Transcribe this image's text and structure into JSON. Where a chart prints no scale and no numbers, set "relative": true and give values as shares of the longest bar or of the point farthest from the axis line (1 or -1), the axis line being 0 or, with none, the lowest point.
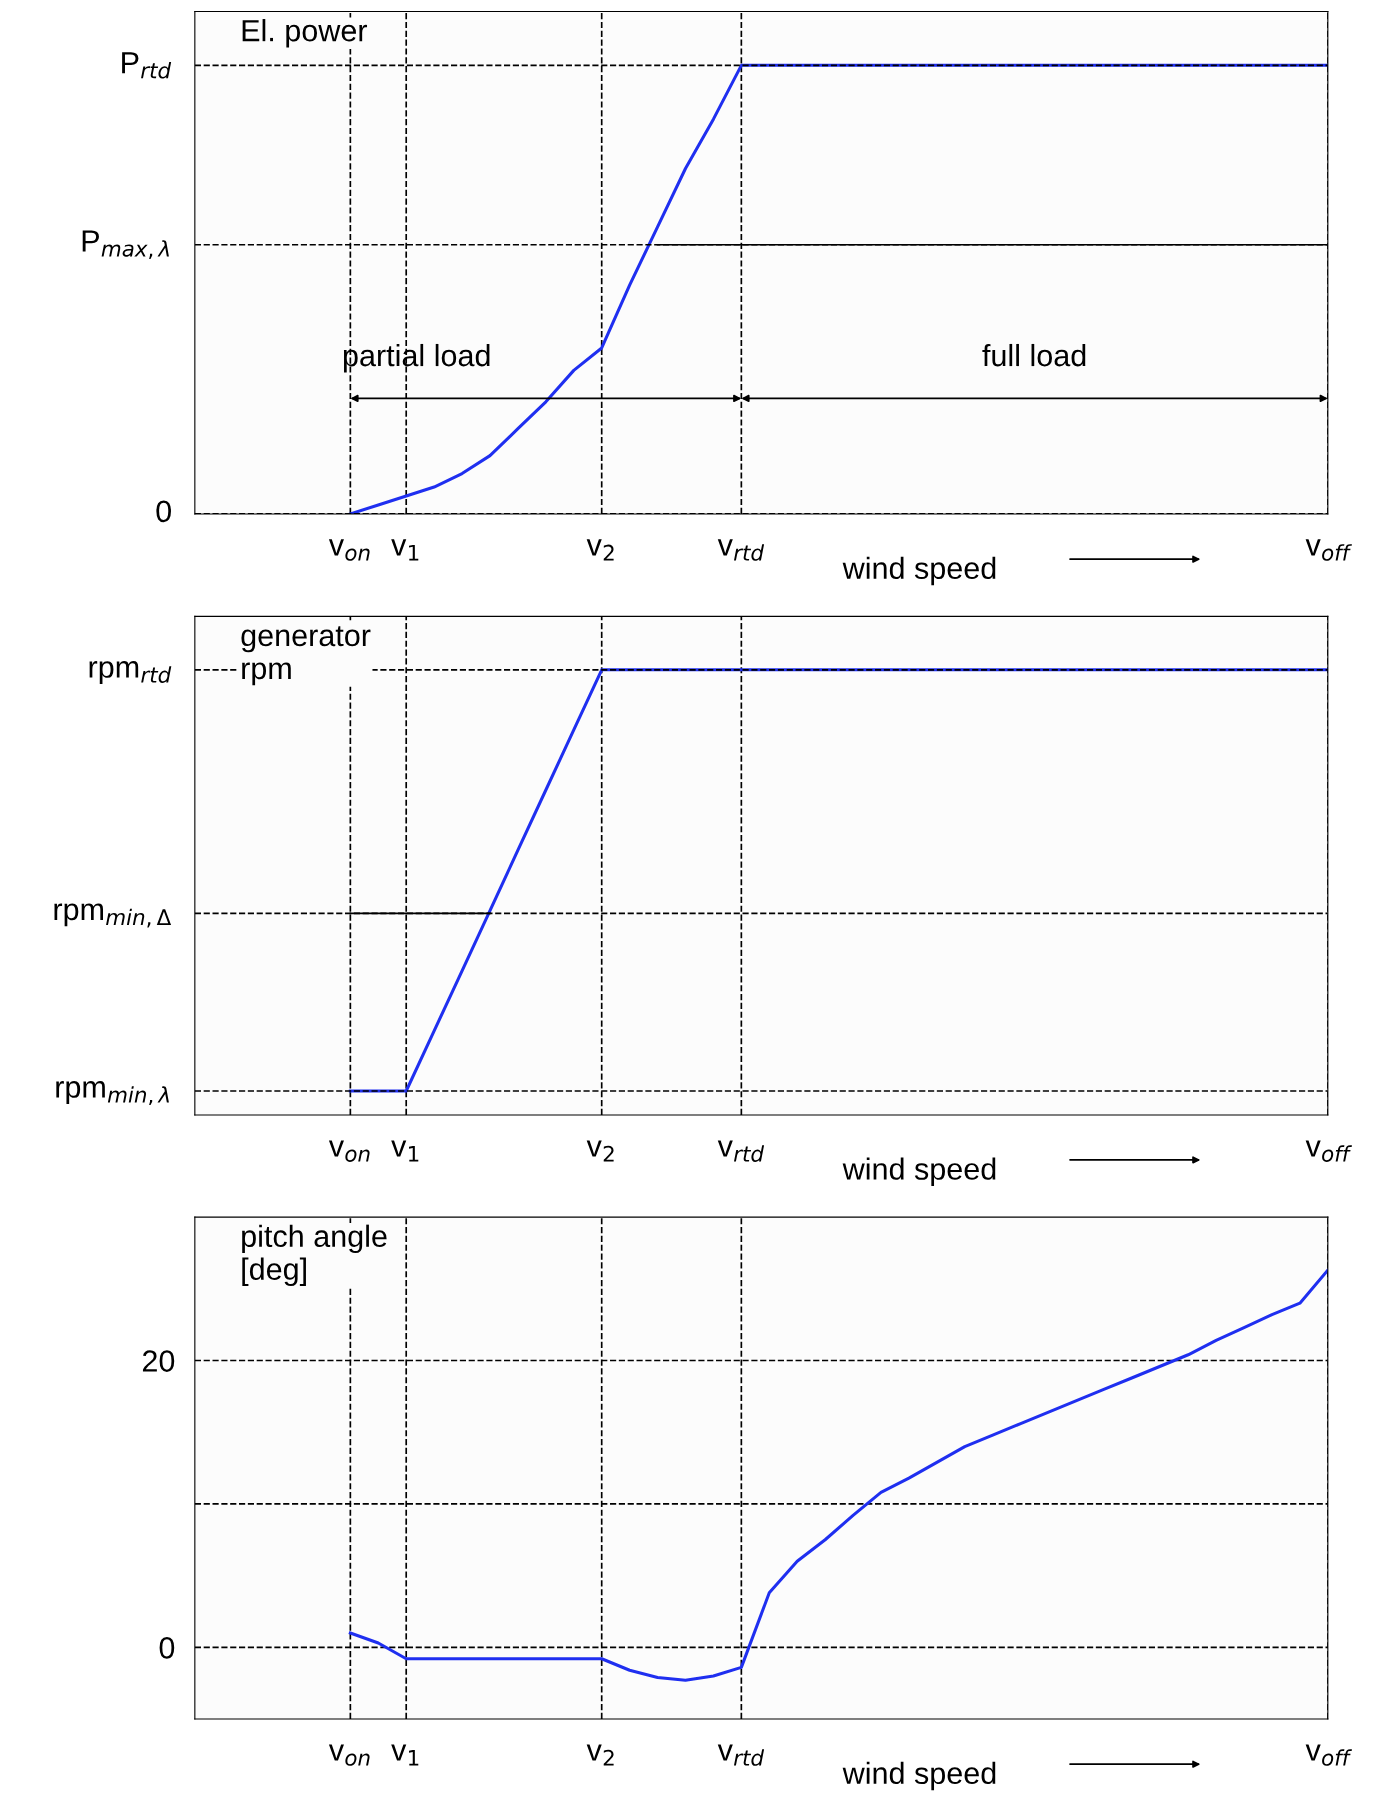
{
  "chart_data": [
    {
      "type": "line",
      "relative": true,
      "ylabel": "El. power",
      "xlabel": "wind speed",
      "annotations": [
        "partial load",
        "full load"
      ],
      "categories": [
        "v$_{on}$",
        null,
        "v$_{1}$",
        null,
        null,
        null,
        null,
        null,
        null,
        "v$_{2}$",
        null,
        null,
        null,
        null,
        "v$_{rtd}$",
        null,
        null,
        null,
        null,
        null,
        null,
        null,
        null,
        null,
        null,
        null,
        null,
        null,
        null,
        null,
        null,
        null,
        null,
        null,
        null,
        "v$_{off}$"
      ],
      "grid": "x",
      "line_style": "solid",
      "ref_lines": [
        {
          "axis": "y",
          "value": 0,
          "label": "0",
          "line_style": "dashed"
        },
        {
          "axis": "y",
          "value": 0.6,
          "label": "P$_{max,λ}$",
          "line_style": "dashed"
        },
        {
          "axis": "y",
          "value": 1,
          "label": "P$_{rtd}$",
          "line_style": "dashed"
        }
      ],
      "series": [
        {
          "color": "#1f2ff0",
          "values": [
            0,
            0.02,
            0.04,
            0.06,
            0.09,
            0.13,
            0.19,
            0.25,
            0.32,
            0.37,
            0.51,
            0.64,
            0.77,
            0.88,
            1,
            1,
            1,
            1,
            1,
            1,
            1,
            1,
            1,
            1,
            1,
            1,
            1,
            1,
            1,
            1,
            1,
            1,
            1,
            1,
            1,
            1
          ]
        },
        {
          "color": "#000000",
          "values": [
            null,
            null,
            null,
            null,
            null,
            null,
            null,
            null,
            null,
            null,
            null,
            0.6,
            0.6,
            0.6,
            0.6,
            0.6,
            0.6,
            0.6,
            0.6,
            0.6,
            0.6,
            0.6,
            0.6,
            0.6,
            0.6,
            0.6,
            0.6,
            0.6,
            0.6,
            0.6,
            0.6,
            0.6,
            0.6,
            0.6,
            0.6,
            0.6
          ]
        }
      ]
    },
    {
      "type": "line",
      "relative": true,
      "ylabel": "generator\nrpm",
      "xlabel": "wind speed",
      "categories": [
        "v$_{on}$",
        null,
        "v$_{1}$",
        null,
        null,
        null,
        null,
        null,
        null,
        "v$_{2}$",
        null,
        null,
        null,
        null,
        "v$_{rtd}$",
        null,
        null,
        null,
        null,
        null,
        null,
        null,
        null,
        null,
        null,
        null,
        null,
        null,
        null,
        null,
        null,
        null,
        null,
        null,
        null,
        "v$_{off}$"
      ],
      "grid": "x",
      "line_style": "solid",
      "ref_lines": [
        {
          "axis": "y",
          "value": 0.054,
          "label": "rpm$_{min,λ}$",
          "line_style": "dashed"
        },
        {
          "axis": "y",
          "value": 0.453,
          "label": "rpm$_{min,Δ}$",
          "line_style": "dashed"
        },
        {
          "axis": "y",
          "value": 1,
          "label": "rpm$_{rtd}$",
          "line_style": "dashed"
        }
      ],
      "series": [
        {
          "color": "#1f2ff0",
          "values": [
            0.054,
            0.054,
            0.054,
            0.189,
            0.324,
            0.459,
            0.595,
            0.73,
            0.865,
            1,
            1,
            1,
            1,
            1,
            1,
            1,
            1,
            1,
            1,
            1,
            1,
            1,
            1,
            1,
            1,
            1,
            1,
            1,
            1,
            1,
            1,
            1,
            1,
            1,
            1,
            1
          ]
        },
        {
          "color": "#000000",
          "values": [
            0.453,
            0.453,
            0.453,
            0.453,
            0.453,
            0.453,
            null,
            null,
            null,
            null,
            null,
            null,
            null,
            null,
            null,
            null,
            null,
            null,
            null,
            null,
            null,
            null,
            null,
            null,
            null,
            null,
            null,
            null,
            null,
            null,
            null,
            null,
            null,
            null,
            null,
            null
          ]
        }
      ]
    },
    {
      "type": "line",
      "ylabel": "pitch angle\n[deg]",
      "xlabel": "wind speed",
      "categories": [
        "v$_{on}$",
        null,
        "v$_{1}$",
        null,
        null,
        null,
        null,
        null,
        null,
        "v$_{2}$",
        null,
        null,
        null,
        null,
        "v$_{rtd}$",
        null,
        null,
        null,
        null,
        null,
        null,
        null,
        null,
        null,
        null,
        null,
        null,
        null,
        null,
        null,
        null,
        null,
        null,
        null,
        null,
        "v$_{off}$"
      ],
      "ylim": [
        -5,
        30
      ],
      "yticks": [
        0,
        {
          "value": 10,
          "label": null
        },
        20
      ],
      "grid": true,
      "line_style": "solid",
      "series": [
        {
          "color": "#1f2ff0",
          "values": [
            1.0,
            0.3,
            -0.8,
            -0.8,
            -0.8,
            -0.8,
            -0.8,
            -0.8,
            -0.8,
            -0.8,
            -1.6,
            -2.1,
            -2.3,
            -2.0,
            -1.4,
            3.8,
            6.0,
            7.5,
            9.2,
            10.8,
            11.8,
            12.9,
            14.0,
            14.8,
            15.6,
            16.4,
            17.2,
            18.0,
            18.8,
            19.6,
            20.4,
            21.4,
            22.3,
            23.2,
            24.0,
            26.3
          ]
        }
      ]
    }
  ]
}
